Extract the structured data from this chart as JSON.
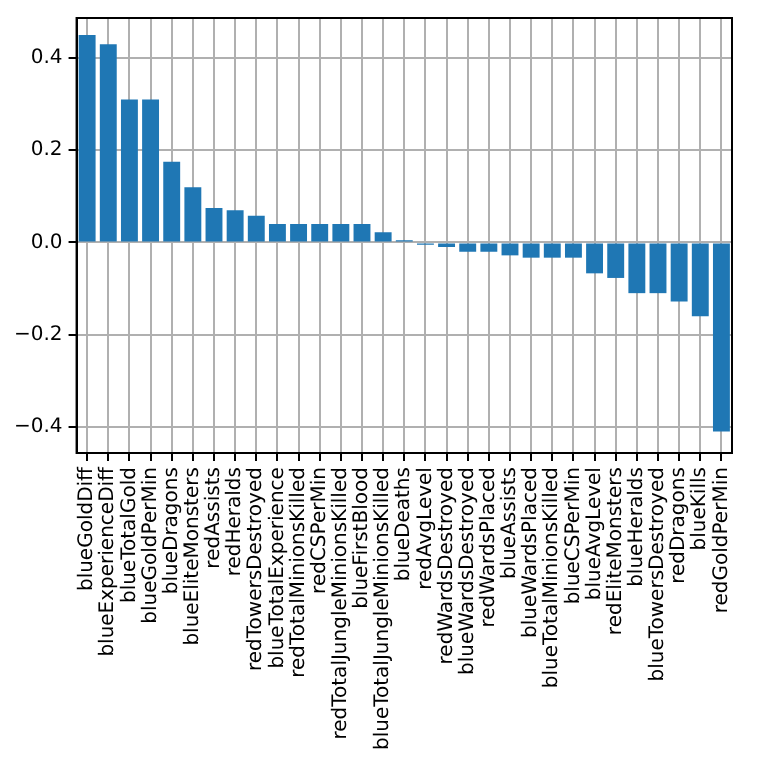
{
  "chart_data": {
    "type": "bar",
    "categories": [
      "blueGoldDiff",
      "blueExperienceDiff",
      "blueTotalGold",
      "blueGoldPerMin",
      "blueDragons",
      "blueEliteMonsters",
      "redAssists",
      "redHeralds",
      "redTowersDestroyed",
      "blueTotalExperience",
      "redTotalMinionsKilled",
      "redCSPerMin",
      "redTotalJungleMinionsKilled",
      "blueFirstBlood",
      "blueTotalJungleMinionsKilled",
      "blueDeaths",
      "redAvgLevel",
      "redWardsDestroyed",
      "blueWardsDestroyed",
      "redWardsPlaced",
      "blueAssists",
      "blueWardsPlaced",
      "blueTotalMinionsKilled",
      "blueCSPerMin",
      "blueAvgLevel",
      "redEliteMonsters",
      "blueHeralds",
      "blueTowersDestroyed",
      "redDragons",
      "blueKills",
      "redGoldPerMin"
    ],
    "values": [
      0.45,
      0.43,
      0.31,
      0.31,
      0.175,
      0.12,
      0.075,
      0.07,
      0.058,
      0.04,
      0.04,
      0.04,
      0.04,
      0.04,
      0.022,
      0.005,
      -0.005,
      -0.01,
      -0.02,
      -0.02,
      -0.028,
      -0.033,
      -0.033,
      -0.033,
      -0.067,
      -0.077,
      -0.11,
      -0.11,
      -0.128,
      -0.16,
      -0.41
    ],
    "color": "#1f77b4",
    "ylim": [
      -0.457,
      0.487
    ],
    "yticks": [
      {
        "value": -0.4,
        "label": "−0.4"
      },
      {
        "value": -0.2,
        "label": "−0.2"
      },
      {
        "value": 0,
        "label": "0.0"
      },
      {
        "value": 0.2,
        "label": "0.2"
      },
      {
        "value": 0.4,
        "label": "0.4"
      }
    ],
    "grid": true
  }
}
